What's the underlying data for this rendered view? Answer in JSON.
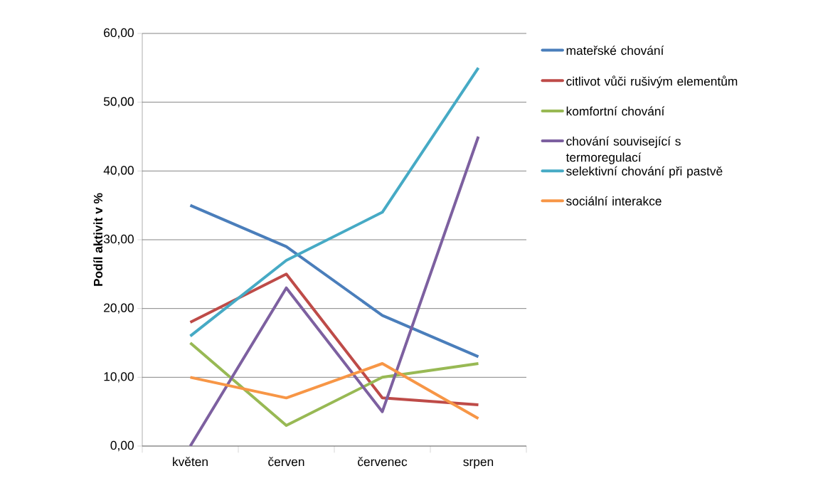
{
  "chart_data": {
    "type": "line",
    "ylabel": "Podíl aktivit  v %",
    "categories": [
      "květen",
      "červen",
      "červenec",
      "srpen"
    ],
    "series": [
      {
        "name": "mateřské chování",
        "color": "#4a7ebb",
        "values": [
          35,
          29,
          19,
          13
        ]
      },
      {
        "name": "citlivot vůči rušivým elementům",
        "color": "#be4b48",
        "values": [
          18,
          25,
          7,
          6
        ]
      },
      {
        "name": "komfortní chování",
        "color": "#98b954",
        "values": [
          15,
          3,
          10,
          12
        ]
      },
      {
        "name": "chování související s termoregulací",
        "color": "#7d60a0",
        "values": [
          0,
          23,
          5,
          45
        ]
      },
      {
        "name": "selektivní chování při pastvě",
        "color": "#46aac5",
        "values": [
          16,
          27,
          34,
          55
        ]
      },
      {
        "name": "sociální interakce",
        "color": "#f79646",
        "values": [
          10,
          7,
          12,
          4
        ]
      }
    ],
    "ylim": [
      0,
      60
    ],
    "yticks": [
      {
        "value": 0,
        "label": "0,00"
      },
      {
        "value": 10,
        "label": "10,00"
      },
      {
        "value": 20,
        "label": "20,00"
      },
      {
        "value": 30,
        "label": "30,00"
      },
      {
        "value": 40,
        "label": "40,00"
      },
      {
        "value": 50,
        "label": "50,00"
      },
      {
        "value": 60,
        "label": "60,00"
      }
    ],
    "grid": "y",
    "legend": "right",
    "marker": "none",
    "line_style": "solid"
  }
}
